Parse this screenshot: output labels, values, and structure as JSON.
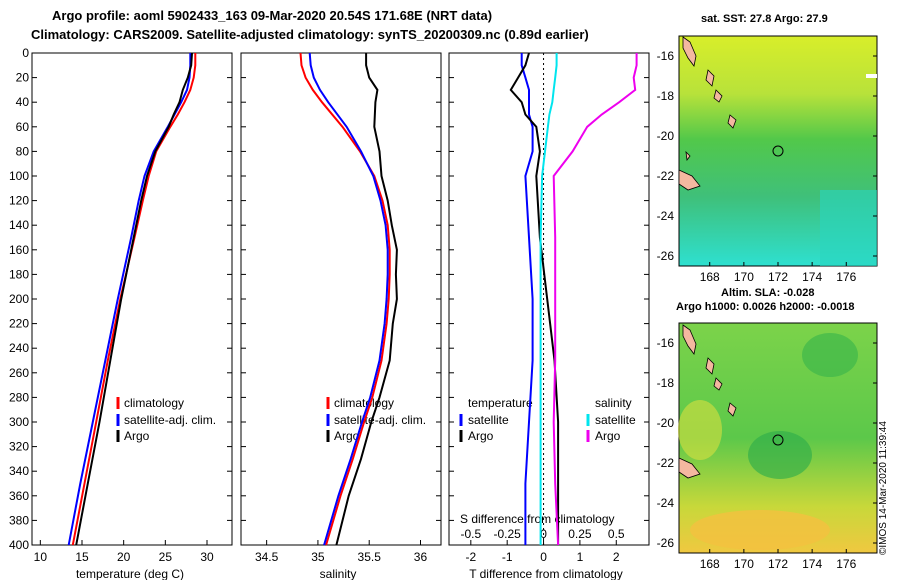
{
  "header": {
    "line1": "Argo profile: aoml 5902433_163 09-Mar-2020 20.54S 171.68E (NRT data)",
    "line2": "Climatology: CARS2009. Satellite-adjusted climatology: synTS_20200309.nc (0.89d earlier)"
  },
  "colors": {
    "climatology": "#ff0000",
    "satellite": "#0000ff",
    "argo": "#000000",
    "sal_satellite": "#00e5ee",
    "sal_argo": "#ee00ee"
  },
  "chart_data": [
    {
      "type": "line",
      "name": "temperature",
      "xlabel": "temperature (deg C)",
      "ylabel": "",
      "xlim": [
        9,
        33
      ],
      "ylim": [
        400,
        0
      ],
      "xticks": [
        "10",
        "15",
        "20",
        "25",
        "30"
      ],
      "yticks": [
        "0",
        "20",
        "40",
        "60",
        "80",
        "100",
        "120",
        "140",
        "160",
        "180",
        "200",
        "220",
        "240",
        "260",
        "280",
        "300",
        "320",
        "340",
        "360",
        "380",
        "400"
      ],
      "legend": [
        "climatology",
        "satellite-adj. clim.",
        "Argo"
      ],
      "depth": [
        0,
        10,
        20,
        30,
        40,
        50,
        60,
        80,
        100,
        120,
        150,
        200,
        250,
        300,
        350,
        400
      ],
      "series": [
        {
          "name": "climatology",
          "values": [
            28.6,
            28.6,
            28.4,
            28.0,
            27.3,
            26.5,
            25.6,
            23.9,
            23.0,
            22.3,
            21.3,
            19.6,
            18.1,
            16.7,
            15.3,
            13.9
          ]
        },
        {
          "name": "satellite-adj. clim.",
          "values": [
            28.0,
            28.0,
            27.9,
            27.6,
            26.9,
            26.1,
            25.3,
            23.6,
            22.5,
            21.8,
            20.9,
            19.3,
            17.8,
            16.3,
            14.8,
            13.4
          ]
        },
        {
          "name": "Argo",
          "values": [
            28.2,
            28.1,
            27.7,
            27.1,
            26.7,
            26.0,
            25.4,
            23.8,
            22.8,
            22.1,
            21.2,
            19.7,
            18.4,
            17.1,
            15.7,
            14.3
          ]
        }
      ]
    },
    {
      "type": "line",
      "name": "salinity",
      "xlabel": "salinity",
      "ylabel": "",
      "xlim": [
        34.25,
        36.2
      ],
      "ylim": [
        400,
        0
      ],
      "xticks": [
        "34.5",
        "35",
        "35.5",
        "36"
      ],
      "legend": [
        "climatology",
        "satellite-adj. clim.",
        "Argo"
      ],
      "depth": [
        0,
        10,
        20,
        30,
        40,
        60,
        80,
        100,
        120,
        140,
        160,
        180,
        200,
        220,
        250,
        280,
        300,
        330,
        360,
        400
      ],
      "series": [
        {
          "name": "climatology",
          "values": [
            34.83,
            34.84,
            34.88,
            34.95,
            35.04,
            35.24,
            35.41,
            35.55,
            35.63,
            35.68,
            35.7,
            35.7,
            35.69,
            35.67,
            35.62,
            35.53,
            35.45,
            35.34,
            35.22,
            35.08
          ]
        },
        {
          "name": "satellite-adj. clim.",
          "values": [
            34.92,
            34.93,
            34.96,
            35.02,
            35.1,
            35.28,
            35.42,
            35.54,
            35.61,
            35.66,
            35.68,
            35.68,
            35.67,
            35.65,
            35.6,
            35.51,
            35.43,
            35.32,
            35.2,
            35.06
          ]
        },
        {
          "name": "Argo",
          "values": [
            35.47,
            35.47,
            35.5,
            35.58,
            35.56,
            35.55,
            35.6,
            35.62,
            35.68,
            35.72,
            35.77,
            35.76,
            35.77,
            35.73,
            35.7,
            35.6,
            35.52,
            35.42,
            35.3,
            35.18
          ]
        }
      ]
    },
    {
      "type": "line",
      "name": "difference",
      "xlabel": "T difference from climatology",
      "x2label": "S difference from climatology",
      "xlim": [
        -2.6,
        2.9
      ],
      "x2lim": [
        -0.65,
        0.725
      ],
      "ylim": [
        400,
        0
      ],
      "xticks": [
        "-2",
        "-1",
        "0",
        "1",
        "2"
      ],
      "x2ticks": [
        "-0.5",
        "-0.25",
        "0",
        "0.25",
        "0.5"
      ],
      "legend_temperature_title": "temperature",
      "legend_salinity_title": "salinity",
      "legend_temperature": [
        "satellite",
        "Argo"
      ],
      "legend_salinity": [
        "satellite",
        "Argo"
      ],
      "depth": [
        0,
        10,
        20,
        30,
        40,
        50,
        60,
        80,
        100,
        150,
        200,
        250,
        300,
        350,
        400
      ],
      "series": [
        {
          "name": "temperature satellite",
          "axis": "T",
          "values": [
            -0.6,
            -0.6,
            -0.5,
            -0.4,
            -0.4,
            -0.4,
            -0.3,
            -0.3,
            -0.5,
            -0.4,
            -0.3,
            -0.3,
            -0.4,
            -0.5,
            -0.5
          ]
        },
        {
          "name": "temperature Argo",
          "axis": "T",
          "values": [
            -0.4,
            -0.5,
            -0.7,
            -0.9,
            -0.6,
            -0.5,
            -0.2,
            -0.1,
            -0.2,
            -0.1,
            0.1,
            0.3,
            0.4,
            0.4,
            0.4
          ]
        },
        {
          "name": "salinity satellite",
          "axis": "S",
          "values": [
            0.09,
            0.09,
            0.08,
            0.07,
            0.06,
            0.04,
            0.03,
            0.01,
            -0.01,
            -0.02,
            -0.02,
            -0.02,
            -0.02,
            -0.02,
            -0.02
          ]
        },
        {
          "name": "salinity Argo",
          "axis": "S",
          "values": [
            0.64,
            0.64,
            0.62,
            0.63,
            0.52,
            0.4,
            0.3,
            0.2,
            0.07,
            0.08,
            0.08,
            0.08,
            0.07,
            0.08,
            0.1
          ]
        }
      ]
    }
  ],
  "maps": [
    {
      "title": "sat. SST: 27.8 Argo: 27.9",
      "lat_ticks": [
        "-16",
        "-18",
        "-20",
        "-22",
        "-24",
        "-26"
      ],
      "lon_ticks": [
        "168",
        "170",
        "172",
        "174",
        "176"
      ],
      "marker": {
        "lon": 171.68,
        "lat": -20.54
      }
    },
    {
      "title1": "Altim. SLA: -0.028",
      "title2": "Argo h1000: 0.0026 h2000: -0.0018",
      "lat_ticks": [
        "-16",
        "-18",
        "-20",
        "-22",
        "-24",
        "-26"
      ],
      "lon_ticks": [
        "168",
        "170",
        "172",
        "174",
        "176"
      ],
      "marker": {
        "lon": 171.68,
        "lat": -20.54
      }
    }
  ],
  "credit": "©IMOS 14-Mar-2020 11:39:44"
}
